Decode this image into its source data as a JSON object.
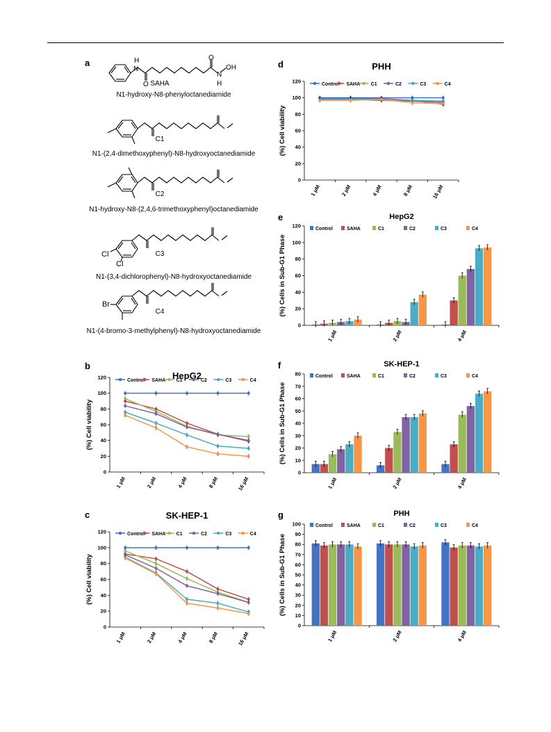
{
  "panel_labels": {
    "a": "a",
    "b": "b",
    "c": "c",
    "d": "d",
    "e": "e",
    "f": "f",
    "g": "g"
  },
  "compounds": [
    {
      "code": "SAHA",
      "name": "N1-hydroxy-N8-phenyloctanediamide",
      "subs": []
    },
    {
      "code": "C1",
      "name": "N1-(2,4-dimethoxyphenyl)-N8-hydroxyoctanediamide",
      "subs": []
    },
    {
      "code": "C2",
      "name": "N1-hydroxy-N8-(2,4,6-trimethoxyphenyl)octanediamide",
      "subs": []
    },
    {
      "code": "C3",
      "name": "N1-(3,4-dichlorophenyl)-N8-hydroxyoctanediamide",
      "subs": [
        "Cl",
        "Cl"
      ]
    },
    {
      "code": "C4",
      "name": "N1-(4-bromo-3-methylphenyl)-N8-hydroxyoctanediamide",
      "subs": [
        "Br"
      ]
    }
  ],
  "atoms": {
    "h": "H",
    "n": "N",
    "o": "O",
    "oh": "OH"
  },
  "series_colors": {
    "Control": "#4472c4",
    "SAHA": "#c0504d",
    "C1": "#9bbb59",
    "C2": "#8064a2",
    "C3": "#4bacc6",
    "C4": "#f79646"
  },
  "chart_data": [
    {
      "panel": "b",
      "type": "line",
      "title": "HepG2",
      "xlabel": "",
      "ylabel": "(%) Cell viability",
      "categories": [
        "1 μM",
        "2 μM",
        "4 μM",
        "8 μM",
        "16 μM"
      ],
      "ylim": [
        0,
        120
      ],
      "ytick_step": 20,
      "grid": false,
      "legend": "top",
      "series": [
        {
          "name": "Control",
          "values": [
            100,
            100,
            100,
            100,
            100
          ]
        },
        {
          "name": "SAHA",
          "values": [
            90,
            80,
            62,
            48,
            39
          ]
        },
        {
          "name": "C1",
          "values": [
            93,
            77,
            58,
            47,
            45
          ]
        },
        {
          "name": "C2",
          "values": [
            84,
            74,
            57,
            48,
            40
          ]
        },
        {
          "name": "C3",
          "values": [
            76,
            62,
            47,
            33,
            30
          ]
        },
        {
          "name": "C4",
          "values": [
            72,
            56,
            32,
            23,
            20
          ]
        }
      ]
    },
    {
      "panel": "c",
      "type": "line",
      "title": "SK-HEP-1",
      "xlabel": "",
      "ylabel": "(%) Cell viability",
      "categories": [
        "1 μM",
        "2 μM",
        "4 μM",
        "8 μM",
        "16 μM"
      ],
      "ylim": [
        0,
        120
      ],
      "ytick_step": 20,
      "grid": false,
      "legend": "top",
      "series": [
        {
          "name": "Control",
          "values": [
            100,
            100,
            100,
            100,
            100
          ]
        },
        {
          "name": "SAHA",
          "values": [
            92,
            86,
            70,
            48,
            35
          ]
        },
        {
          "name": "C1",
          "values": [
            96,
            80,
            61,
            44,
            31
          ]
        },
        {
          "name": "C2",
          "values": [
            91,
            74,
            52,
            42,
            31
          ]
        },
        {
          "name": "C3",
          "values": [
            88,
            68,
            35,
            30,
            19
          ]
        },
        {
          "name": "C4",
          "values": [
            87,
            67,
            30,
            24,
            17
          ]
        }
      ]
    },
    {
      "panel": "d",
      "type": "line",
      "title": "PHH",
      "xlabel": "",
      "ylabel": "(%) Cell viability",
      "categories": [
        "1 μM",
        "2 μM",
        "4 μM",
        "8 μM",
        "16 μM"
      ],
      "ylim": [
        0,
        120
      ],
      "ytick_step": 20,
      "grid": false,
      "legend": "top",
      "series": [
        {
          "name": "Control",
          "values": [
            100,
            100,
            100,
            100,
            100
          ]
        },
        {
          "name": "SAHA",
          "values": [
            99,
            99,
            99,
            97,
            92
          ]
        },
        {
          "name": "C1",
          "values": [
            98,
            98,
            97,
            96,
            94
          ]
        },
        {
          "name": "C2",
          "values": [
            99,
            98,
            97,
            96,
            95
          ]
        },
        {
          "name": "C3",
          "values": [
            98,
            98,
            98,
            97,
            96
          ]
        },
        {
          "name": "C4",
          "values": [
            97,
            97,
            98,
            94,
            93
          ]
        }
      ]
    },
    {
      "panel": "e",
      "type": "bar",
      "title": "HepG2",
      "xlabel": "",
      "ylabel": "(%) Cells in Sub-G1 Phase",
      "categories": [
        "1 μM",
        "2 μM",
        "4 μM"
      ],
      "ylim": [
        0,
        120
      ],
      "ytick_step": 20,
      "grid": false,
      "legend": "top",
      "series": [
        {
          "name": "Control",
          "values": [
            1,
            1,
            1
          ]
        },
        {
          "name": "SAHA",
          "values": [
            2,
            3,
            30
          ]
        },
        {
          "name": "C1",
          "values": [
            3,
            5,
            60
          ]
        },
        {
          "name": "C2",
          "values": [
            4,
            4,
            68
          ]
        },
        {
          "name": "C3",
          "values": [
            5,
            28,
            93
          ]
        },
        {
          "name": "C4",
          "values": [
            7,
            37,
            94
          ]
        }
      ]
    },
    {
      "panel": "f",
      "type": "bar",
      "title": "SK-HEP-1",
      "xlabel": "",
      "ylabel": "(%) Cells in Sub-G1 Phase",
      "categories": [
        "1 μM",
        "2 μM",
        "4 μM"
      ],
      "ylim": [
        0,
        80
      ],
      "ytick_step": 10,
      "grid": false,
      "legend": "top",
      "series": [
        {
          "name": "Control",
          "values": [
            7,
            6,
            7
          ]
        },
        {
          "name": "SAHA",
          "values": [
            7,
            20,
            23
          ]
        },
        {
          "name": "C1",
          "values": [
            15,
            33,
            47
          ]
        },
        {
          "name": "C2",
          "values": [
            19,
            45,
            54
          ]
        },
        {
          "name": "C3",
          "values": [
            23,
            45,
            64
          ]
        },
        {
          "name": "C4",
          "values": [
            30,
            48,
            66
          ]
        }
      ]
    },
    {
      "panel": "g",
      "type": "bar",
      "title": "PHH",
      "xlabel": "",
      "ylabel": "(%) Cells in Sub-G1 Phase",
      "categories": [
        "1 μM",
        "2 μM",
        "4 μM"
      ],
      "ylim": [
        0,
        100
      ],
      "ytick_step": 10,
      "grid": false,
      "legend": "top",
      "series": [
        {
          "name": "Control",
          "values": [
            81,
            81,
            82
          ]
        },
        {
          "name": "SAHA",
          "values": [
            79,
            80,
            77
          ]
        },
        {
          "name": "C1",
          "values": [
            80,
            80,
            79
          ]
        },
        {
          "name": "C2",
          "values": [
            80,
            80,
            79
          ]
        },
        {
          "name": "C3",
          "values": [
            80,
            78,
            78
          ]
        },
        {
          "name": "C4",
          "values": [
            78,
            79,
            79
          ]
        }
      ]
    }
  ]
}
